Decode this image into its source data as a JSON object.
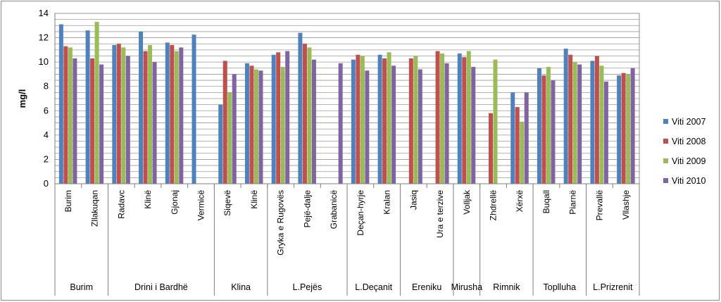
{
  "chart_data": {
    "type": "bar",
    "ylabel": "mg/l",
    "xlabel": "",
    "ylim": [
      0,
      14
    ],
    "yticks": [
      0,
      2,
      4,
      6,
      8,
      10,
      12,
      14
    ],
    "grid": true,
    "legend_position": "right",
    "categories": [
      "Burim",
      "Zllakuqan",
      "Radavc",
      "Klinë",
      "Gjonaj",
      "Vermicë",
      "Siqevë",
      "Klinë",
      "Gryka e Rugovës",
      "Pejë-dalje",
      "Grabanicë",
      "Deçan-hyrje",
      "Kralan",
      "Jasiq",
      "Ura e terzive",
      "Volljak",
      "Zhdrellë",
      "Xërxë",
      "Buqall",
      "Piarnë",
      "Prevallë",
      "Vllashje"
    ],
    "groups": [
      {
        "label": "Burim",
        "count": 2
      },
      {
        "label": "Drini i Bardhë",
        "count": 4
      },
      {
        "label": "Klina",
        "count": 2
      },
      {
        "label": "L.Pejës",
        "count": 3
      },
      {
        "label": "L.Deçanit",
        "count": 2
      },
      {
        "label": "Ereniku",
        "count": 2
      },
      {
        "label": "Mirusha",
        "count": 1
      },
      {
        "label": "Rimnik",
        "count": 2
      },
      {
        "label": "Toplluha",
        "count": 2
      },
      {
        "label": "L.Prizrenit",
        "count": 2
      }
    ],
    "series": [
      {
        "name": "Viti 2007",
        "color": "#4f81bd",
        "values": [
          13.1,
          12.6,
          11.4,
          12.5,
          11.6,
          12.25,
          6.5,
          9.9,
          10.6,
          12.4,
          null,
          10.2,
          10.6,
          null,
          null,
          10.7,
          null,
          7.5,
          9.5,
          11.1,
          10.1,
          8.9
        ]
      },
      {
        "name": "Viti 2008",
        "color": "#c0504d",
        "values": [
          11.3,
          10.3,
          11.5,
          10.9,
          11.4,
          null,
          10.1,
          9.7,
          10.8,
          11.5,
          null,
          10.6,
          10.3,
          10.3,
          10.9,
          10.4,
          5.8,
          6.3,
          8.9,
          10.6,
          10.5,
          9.1
        ]
      },
      {
        "name": "Viti 2009",
        "color": "#9bbb59",
        "values": [
          11.2,
          13.3,
          11.2,
          11.4,
          10.9,
          null,
          7.5,
          9.4,
          9.6,
          11.2,
          null,
          10.5,
          10.8,
          10.5,
          10.7,
          10.9,
          10.2,
          5.1,
          9.6,
          10.0,
          9.7,
          9.0
        ]
      },
      {
        "name": "Viti 2010",
        "color": "#8064a2",
        "values": [
          10.3,
          9.8,
          10.5,
          10.0,
          11.2,
          null,
          9.0,
          9.3,
          10.9,
          10.2,
          9.9,
          9.3,
          9.7,
          9.4,
          9.9,
          9.6,
          null,
          7.5,
          8.5,
          9.8,
          8.4,
          9.5
        ]
      }
    ]
  }
}
